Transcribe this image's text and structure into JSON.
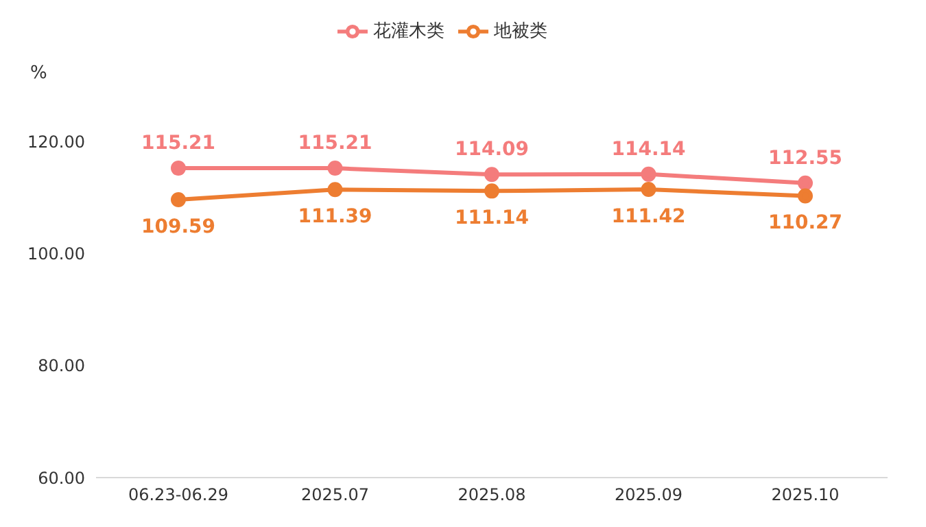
{
  "chart_data": {
    "type": "line",
    "ylabel": "%",
    "categories": [
      "06.23-06.29",
      "2025.07",
      "2025.08",
      "2025.09",
      "2025.10"
    ],
    "series": [
      {
        "name": "花灌木类",
        "color": "#f47c7c",
        "values": [
          115.21,
          115.21,
          114.09,
          114.14,
          112.55
        ]
      },
      {
        "name": "地被类",
        "color": "#ed7d31",
        "values": [
          109.59,
          111.39,
          111.14,
          111.42,
          110.27
        ]
      }
    ],
    "ylim": [
      60,
      120
    ],
    "yticks": [
      {
        "value": 60,
        "label": "60.00"
      },
      {
        "value": 80,
        "label": "80.00"
      },
      {
        "value": 100,
        "label": "100.00"
      },
      {
        "value": 120,
        "label": "120.00"
      }
    ],
    "grid": false,
    "legend": "top",
    "marker": "circle",
    "line_style": "solid",
    "data_labels": true
  }
}
